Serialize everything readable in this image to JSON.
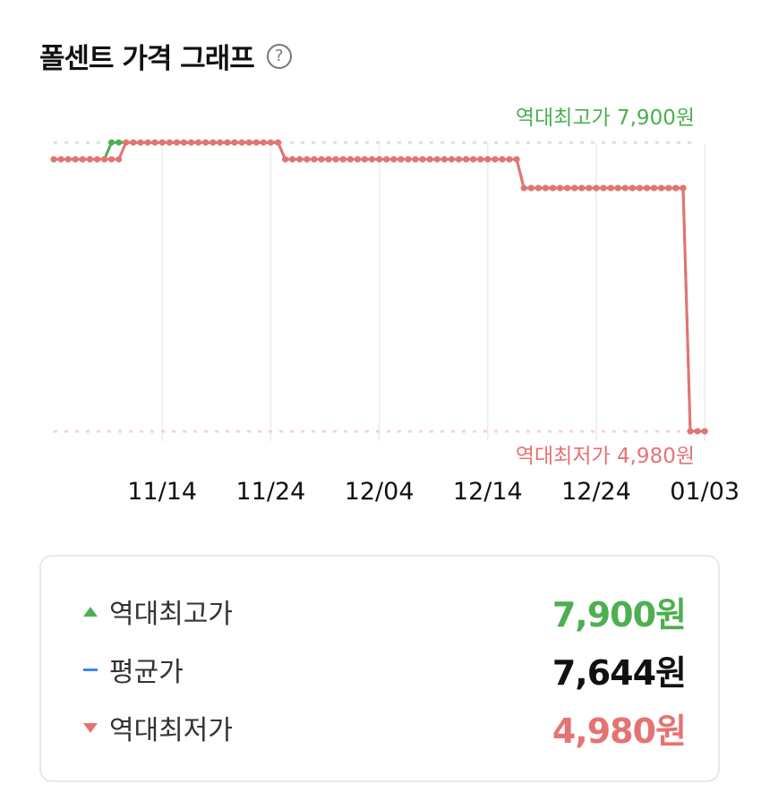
{
  "header": {
    "title": "폴센트 가격 그래프",
    "help_icon": "question-circle-icon"
  },
  "colors": {
    "high": "#4caf50",
    "low": "#e57373",
    "avg": "#3a86f5",
    "grid": "#ececec"
  },
  "chart_data": {
    "type": "line",
    "ylim": [
      4500,
      8300
    ],
    "x_ticks": [
      "11/14",
      "11/24",
      "12/04",
      "12/14",
      "12/24",
      "01/03"
    ],
    "grid": true,
    "reference_lines": [
      {
        "name": "high",
        "label": "역대최고가 7,900원",
        "value": 7900
      },
      {
        "name": "low",
        "label": "역대최저가 4,980원",
        "value": 4980
      }
    ],
    "series": [
      {
        "values": [
          7730,
          7730,
          7730,
          7730,
          7730,
          7730,
          7730,
          7730,
          7900,
          7900,
          7900,
          7900,
          7900,
          7900,
          7900,
          7900,
          7900,
          7900,
          7900,
          7900,
          7900,
          7900,
          7900,
          7900,
          7900,
          7900,
          7900,
          7900,
          7900,
          7900,
          7900,
          7900,
          7730,
          7730,
          7730,
          7730,
          7730,
          7730,
          7730,
          7730,
          7730,
          7730,
          7730,
          7730,
          7730,
          7730,
          7730,
          7730,
          7730,
          7730,
          7730,
          7730,
          7730,
          7730,
          7730,
          7730,
          7730,
          7730,
          7730,
          7730,
          7730,
          7730,
          7730,
          7730,
          7730,
          7440,
          7440,
          7440,
          7440,
          7440,
          7440,
          7440,
          7440,
          7440,
          7440,
          7440,
          7440,
          7440,
          7440,
          7440,
          7440,
          7440,
          7440,
          7440,
          7440,
          7440,
          7440,
          7440,
          4980,
          4980,
          4980
        ]
      },
      {
        "values": [
          7730,
          7730,
          7730,
          7730,
          7730,
          7730,
          7730,
          7730,
          7730,
          7730,
          7900,
          7900,
          7900,
          7900,
          7900,
          7900,
          7900,
          7900,
          7900,
          7900,
          7900,
          7900,
          7900,
          7900,
          7900,
          7900,
          7900,
          7900,
          7900,
          7900,
          7900,
          7900,
          7730,
          7730,
          7730,
          7730,
          7730,
          7730,
          7730,
          7730,
          7730,
          7730,
          7730,
          7730,
          7730,
          7730,
          7730,
          7730,
          7730,
          7730,
          7730,
          7730,
          7730,
          7730,
          7730,
          7730,
          7730,
          7730,
          7730,
          7730,
          7730,
          7730,
          7730,
          7730,
          7730,
          7440,
          7440,
          7440,
          7440,
          7440,
          7440,
          7440,
          7440,
          7440,
          7440,
          7440,
          7440,
          7440,
          7440,
          7440,
          7440,
          7440,
          7440,
          7440,
          7440,
          7440,
          7440,
          7440,
          4980,
          4980,
          4980
        ]
      }
    ]
  },
  "summary": {
    "rows": [
      {
        "label": "역대최고가",
        "value": "7,900원",
        "color": "#4caf50",
        "marker": "triangle-up-icon"
      },
      {
        "label": "평균가",
        "value": "7,644원",
        "color": "#111111",
        "marker": "dash-icon"
      },
      {
        "label": "역대최저가",
        "value": "4,980원",
        "color": "#e57373",
        "marker": "triangle-down-icon"
      }
    ]
  }
}
